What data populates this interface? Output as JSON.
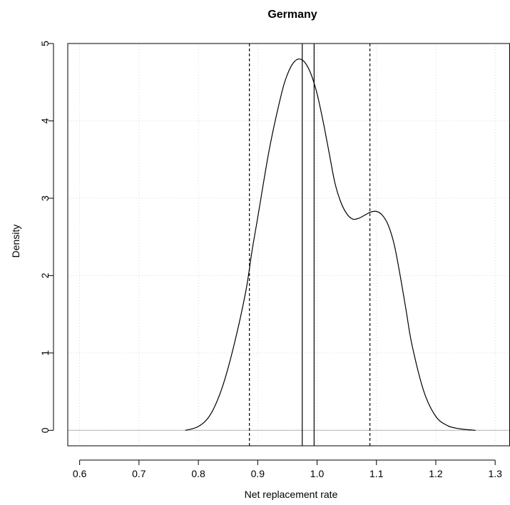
{
  "chart_data": {
    "type": "line",
    "title": "Germany",
    "xlabel": "Net replacement rate",
    "ylabel": "Density",
    "xlim": [
      0.58,
      1.325
    ],
    "ylim": [
      -0.2,
      5.0
    ],
    "x_ticks": [
      0.6,
      0.7,
      0.8,
      0.9,
      1.0,
      1.1,
      1.2,
      1.3
    ],
    "x_tick_labels": [
      "0.6",
      "0.7",
      "0.8",
      "0.9",
      "1.0",
      "1.1",
      "1.2",
      "1.3"
    ],
    "y_ticks": [
      0,
      1,
      2,
      3,
      4,
      5
    ],
    "y_tick_labels": [
      "0",
      "1",
      "2",
      "3",
      "4",
      "5"
    ],
    "grid": true,
    "horizontal_reference": 0,
    "series": [
      {
        "kind": "density",
        "x": [
          0.778,
          0.8,
          0.82,
          0.84,
          0.86,
          0.88,
          0.89,
          0.9,
          0.92,
          0.94,
          0.95,
          0.96,
          0.97,
          0.98,
          0.99,
          1.0,
          1.01,
          1.02,
          1.03,
          1.04,
          1.05,
          1.06,
          1.07,
          1.08,
          1.09,
          1.1,
          1.11,
          1.12,
          1.13,
          1.14,
          1.15,
          1.16,
          1.18,
          1.2,
          1.22,
          1.24,
          1.267
        ],
        "y": [
          0.0,
          0.05,
          0.2,
          0.55,
          1.1,
          1.8,
          2.3,
          2.75,
          3.65,
          4.35,
          4.6,
          4.75,
          4.8,
          4.75,
          4.6,
          4.35,
          4.0,
          3.6,
          3.2,
          2.95,
          2.8,
          2.73,
          2.74,
          2.78,
          2.82,
          2.83,
          2.78,
          2.65,
          2.4,
          2.0,
          1.55,
          1.1,
          0.5,
          0.18,
          0.06,
          0.02,
          0.0
        ]
      }
    ],
    "vertical_lines": [
      {
        "x": 0.886,
        "style": "dashed"
      },
      {
        "x": 0.975,
        "style": "solid"
      },
      {
        "x": 0.995,
        "style": "solid"
      },
      {
        "x": 1.089,
        "style": "dashed"
      }
    ]
  }
}
